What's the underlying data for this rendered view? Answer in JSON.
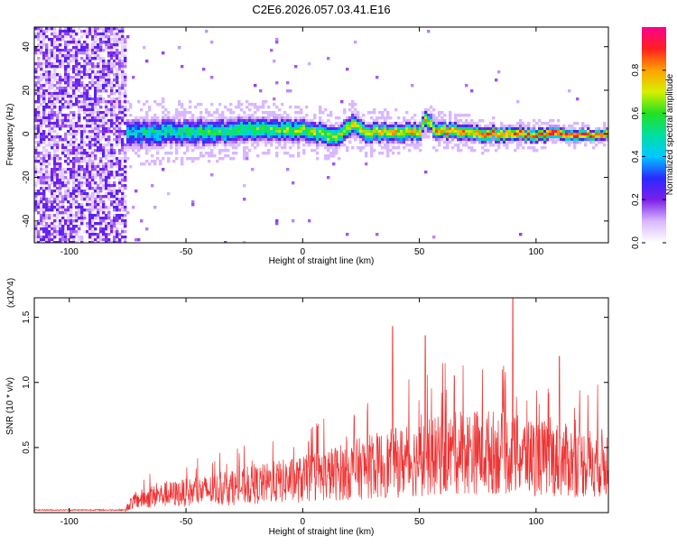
{
  "title": "C2E6.2026.057.03.41.E16",
  "chart_data": [
    {
      "type": "heatmap",
      "xlabel": "Height of straight line (km)",
      "ylabel": "Frequency (Hz)",
      "xlim": [
        -115,
        131
      ],
      "ylim": [
        -50,
        49
      ],
      "xticks": [
        -100,
        -50,
        0,
        50,
        100
      ],
      "yticks": [
        -40,
        -20,
        0,
        20,
        40
      ],
      "colorbar": {
        "label": "Normalized spectral amplitude",
        "range": [
          0.0,
          1.0
        ],
        "ticks": [
          0.0,
          0.2,
          0.4,
          0.6,
          0.8
        ]
      },
      "noise_region": {
        "x_from": -115,
        "x_to": -76,
        "amplitude": 0.15
      },
      "doppler_track": [
        {
          "x": -76,
          "f": 0
        },
        {
          "x": -60,
          "f": 1
        },
        {
          "x": -40,
          "f": 1
        },
        {
          "x": -20,
          "f": 2
        },
        {
          "x": 0,
          "f": 2
        },
        {
          "x": 10,
          "f": 0
        },
        {
          "x": 15,
          "f": -1
        },
        {
          "x": 20,
          "f": 3
        },
        {
          "x": 22,
          "f": 5
        },
        {
          "x": 26,
          "f": 1
        },
        {
          "x": 40,
          "f": 1
        },
        {
          "x": 50,
          "f": 1
        },
        {
          "x": 53,
          "f": 7
        },
        {
          "x": 57,
          "f": 2
        },
        {
          "x": 80,
          "f": 0
        },
        {
          "x": 100,
          "f": 0
        },
        {
          "x": 131,
          "f": 0
        }
      ]
    },
    {
      "type": "line",
      "xlabel": "Height of straight line (km)",
      "ylabel": "SNR (10 * v/v)",
      "yscale_label": "(x10^4)",
      "xlim": [
        -115,
        131
      ],
      "ylim": [
        0,
        1.65
      ],
      "xticks": [
        -100,
        -50,
        0,
        50,
        100
      ],
      "yticks": [
        0.5,
        1.0,
        1.5
      ],
      "ytick_labels": [
        "0.5",
        "1.0",
        "1.5"
      ],
      "color": "#ee3333",
      "series": [
        {
          "x": [
            -115,
            -76,
            -74,
            -70,
            -60,
            -50,
            -40,
            -30,
            -20,
            -10,
            0,
            10,
            20,
            30,
            40,
            50,
            60,
            70,
            80,
            90,
            100,
            110,
            120,
            131
          ],
          "values": [
            0.02,
            0.02,
            0.08,
            0.12,
            0.16,
            0.18,
            0.2,
            0.22,
            0.25,
            0.28,
            0.3,
            0.34,
            0.38,
            0.42,
            0.45,
            0.48,
            0.52,
            0.55,
            0.55,
            0.52,
            0.5,
            0.48,
            0.45,
            0.45
          ]
        }
      ],
      "peaks": [
        {
          "x": 38.5,
          "y": 1.43
        },
        {
          "x": 52.5,
          "y": 1.36
        },
        {
          "x": 60,
          "y": 1.15
        },
        {
          "x": 90,
          "y": 1.66
        },
        {
          "x": 65,
          "y": 1.05
        },
        {
          "x": 77,
          "y": 1.1
        },
        {
          "x": 110,
          "y": 1.2
        }
      ]
    }
  ]
}
